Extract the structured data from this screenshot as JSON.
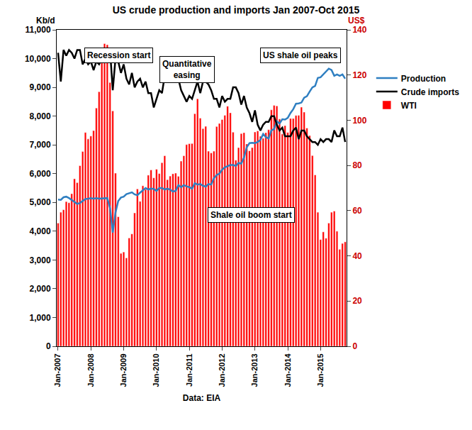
{
  "chart_data": {
    "type": "line",
    "title": "US crude production and imports Jan 2007-Oct 2015",
    "ylabel": "Kb/d",
    "y2label": "US$",
    "xlabel": "Data: EIA",
    "annotations": [
      "Recession start",
      "Quantitative easing",
      "US shale oil peaks",
      "Shale oil boom start"
    ],
    "grid": false,
    "legend": "right",
    "categories": [
      "Jan-2007",
      null,
      null,
      null,
      null,
      null,
      null,
      null,
      null,
      null,
      null,
      null,
      "Jan-2008",
      null,
      null,
      null,
      null,
      null,
      null,
      null,
      null,
      null,
      null,
      null,
      "Jan-2009",
      null,
      null,
      null,
      null,
      null,
      null,
      null,
      null,
      null,
      null,
      null,
      "Jan-2010",
      null,
      null,
      null,
      null,
      null,
      null,
      null,
      null,
      null,
      null,
      null,
      "Jan-2011",
      null,
      null,
      null,
      null,
      null,
      null,
      null,
      null,
      null,
      null,
      null,
      "Jan-2012",
      null,
      null,
      null,
      null,
      null,
      null,
      null,
      null,
      null,
      null,
      null,
      "Jan-2013",
      null,
      null,
      null,
      null,
      null,
      null,
      null,
      null,
      null,
      null,
      null,
      "Jan-2014",
      null,
      null,
      null,
      null,
      null,
      null,
      null,
      null,
      null,
      null,
      null,
      "Jan-2015",
      null,
      null,
      null,
      null,
      null,
      null,
      null,
      null,
      null
    ],
    "ylim": [
      0,
      11000
    ],
    "yticks": [
      0,
      {
        "value": 1000,
        "label": "1,000"
      },
      {
        "value": 2000,
        "label": "2,000"
      },
      {
        "value": 3000,
        "label": "3,000"
      },
      {
        "value": 4000,
        "label": "4,000"
      },
      {
        "value": 5000,
        "label": "5,000"
      },
      {
        "value": 6000,
        "label": "6,000"
      },
      {
        "value": 7000,
        "label": "7,000"
      },
      {
        "value": 8000,
        "label": "8,000"
      },
      {
        "value": 9000,
        "label": "9,000"
      },
      {
        "value": 10000,
        "label": "10,000"
      },
      {
        "value": 11000,
        "label": "11,000"
      }
    ],
    "y2lim": [
      0,
      140
    ],
    "y2ticks": [
      0,
      20,
      40,
      60,
      80,
      100,
      120,
      140
    ],
    "series": [
      {
        "name": "Production",
        "type": "line",
        "color": "#2f7fc1",
        "marker": "none",
        "line_style": "solid",
        "values": [
          5100,
          5090,
          5180,
          5200,
          5150,
          5080,
          5000,
          4950,
          4980,
          5050,
          5120,
          5130,
          5150,
          5130,
          5150,
          5130,
          5140,
          5140,
          5150,
          4800,
          3950,
          4650,
          5050,
          5170,
          5200,
          5290,
          5320,
          5350,
          5280,
          5250,
          5340,
          5410,
          5500,
          5450,
          5480,
          5470,
          5400,
          5500,
          5500,
          5450,
          5480,
          5440,
          5380,
          5400,
          5600,
          5530,
          5600,
          5560,
          5530,
          5480,
          5670,
          5620,
          5640,
          5580,
          5550,
          5640,
          5620,
          5840,
          5950,
          6000,
          6140,
          6220,
          6270,
          6300,
          6300,
          6270,
          6370,
          6350,
          6560,
          6920,
          7060,
          7070,
          7060,
          7100,
          7170,
          7380,
          7270,
          7220,
          7500,
          7550,
          7820,
          7740,
          7890,
          7880,
          7940,
          8110,
          8240,
          8430,
          8440,
          8470,
          8640,
          8690,
          8850,
          9000,
          9050,
          9330,
          9350,
          9450,
          9550,
          9650,
          9600,
          9400,
          9450,
          9400,
          9450,
          9300
        ]
      },
      {
        "name": "Crude imports",
        "type": "line",
        "color": "#000000",
        "marker": "none",
        "line_style": "solid",
        "values": [
          10200,
          9200,
          10300,
          10100,
          10300,
          10200,
          10000,
          10300,
          10300,
          9800,
          10000,
          9800,
          9900,
          9600,
          9900,
          9800,
          10000,
          10100,
          9900,
          10300,
          8900,
          10000,
          9900,
          9500,
          9800,
          9300,
          9100,
          9500,
          9000,
          9200,
          9300,
          9000,
          9200,
          8800,
          8800,
          8300,
          8600,
          8900,
          8800,
          9400,
          9600,
          9900,
          9900,
          9600,
          9300,
          8900,
          8700,
          8500,
          8700,
          8600,
          8900,
          9200,
          8800,
          9200,
          9200,
          9100,
          8900,
          8600,
          8600,
          8300,
          8700,
          8500,
          8600,
          8600,
          9000,
          9000,
          8800,
          8400,
          8700,
          8300,
          8100,
          7800,
          8200,
          7700,
          7500,
          7700,
          7800,
          7800,
          8000,
          8000,
          7700,
          7500,
          7600,
          7300,
          7300,
          7300,
          7500,
          7600,
          7200,
          7500,
          7500,
          7300,
          7200,
          7100,
          7100,
          7000,
          7200,
          7100,
          7200,
          7200,
          7100,
          7500,
          7300,
          7300,
          7600,
          7100
        ]
      },
      {
        "name": "WTI",
        "type": "bar",
        "axis": "y2",
        "color": "#ff0000",
        "values": [
          54.5,
          59.3,
          60.4,
          64.0,
          63.5,
          67.5,
          74.1,
          72.4,
          79.9,
          86.2,
          94.6,
          91.7,
          93.0,
          95.4,
          105.4,
          112.6,
          125.4,
          133.9,
          133.4,
          116.7,
          104.1,
          76.6,
          57.3,
          41.1,
          41.7,
          39.1,
          47.9,
          49.7,
          59.0,
          69.6,
          64.1,
          71.0,
          69.4,
          75.7,
          78.0,
          74.5,
          78.3,
          76.4,
          81.2,
          84.3,
          73.7,
          75.3,
          76.3,
          76.6,
          75.2,
          81.9,
          84.3,
          89.2,
          89.6,
          89.7,
          102.9,
          109.5,
          100.9,
          96.3,
          97.3,
          86.3,
          85.5,
          86.3,
          97.2,
          98.6,
          100.3,
          102.2,
          106.2,
          103.3,
          94.7,
          82.3,
          87.9,
          94.1,
          94.5,
          89.5,
          86.5,
          87.9,
          94.8,
          95.3,
          92.9,
          92.0,
          94.5,
          95.8,
          104.6,
          106.6,
          106.3,
          100.5,
          93.9,
          97.6,
          94.6,
          100.8,
          100.8,
          102.1,
          102.2,
          105.8,
          103.6,
          96.5,
          93.2,
          84.4,
          75.8,
          59.3,
          47.2,
          50.6,
          47.8,
          54.5,
          59.3,
          59.8,
          50.9,
          42.9,
          45.5,
          46.2
        ]
      }
    ]
  }
}
